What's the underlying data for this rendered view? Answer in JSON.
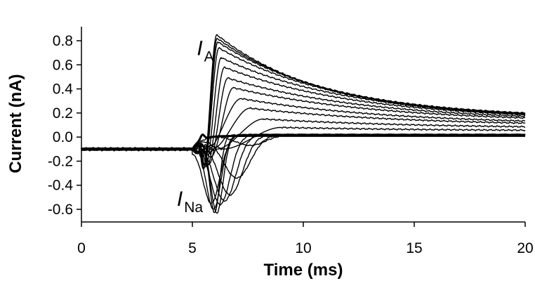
{
  "chart_data": {
    "type": "line",
    "title": "",
    "xlabel": "Time (ms)",
    "ylabel": "Current (nA)",
    "xlim": [
      0,
      20
    ],
    "ylim": [
      -0.7,
      0.9
    ],
    "xticks": [
      0,
      5,
      10,
      15,
      20
    ],
    "xtick_labels": [
      "0",
      "5",
      "10",
      "15",
      "20"
    ],
    "yticks": [
      0.8,
      0.6,
      0.4,
      0.2,
      0.0,
      -0.2,
      -0.4,
      -0.6
    ],
    "ytick_labels": [
      "0.8",
      "0.6",
      "0.4",
      "0.2",
      "0.0",
      "-0.2",
      "-0.4",
      "-0.6"
    ],
    "grid": false,
    "legend": "none",
    "annotations": [
      {
        "name": "annotation-ia",
        "text": "I",
        "subscript": "A",
        "x": 5.2,
        "y": 0.68
      },
      {
        "name": "annotation-ina",
        "text": "I",
        "subscript": "Na",
        "x": 4.3,
        "y": -0.57
      }
    ],
    "baseline": -0.1,
    "step_time_ms": 5.0,
    "series": [
      {
        "name": "trace-1",
        "peak_time": 6.1,
        "peak": 0.85,
        "tail": 0.15
      },
      {
        "name": "trace-2",
        "peak_time": 6.12,
        "peak": 0.82,
        "tail": 0.15
      },
      {
        "name": "trace-3",
        "peak_time": 6.15,
        "peak": 0.79,
        "tail": 0.15
      },
      {
        "name": "trace-4",
        "peak_time": 6.2,
        "peak": 0.74,
        "tail": 0.15
      },
      {
        "name": "trace-5",
        "peak_time": 6.3,
        "peak": 0.66,
        "tail": 0.15
      },
      {
        "name": "trace-6",
        "peak_time": 6.45,
        "peak": 0.58,
        "tail": 0.14
      },
      {
        "name": "trace-7",
        "peak_time": 6.6,
        "peak": 0.49,
        "tail": 0.13
      },
      {
        "name": "trace-8",
        "peak_time": 6.85,
        "peak": 0.41,
        "tail": 0.12
      },
      {
        "name": "trace-9",
        "peak_time": 7.2,
        "peak": 0.32,
        "tail": 0.1
      },
      {
        "name": "trace-10",
        "peak_time": 7.6,
        "peak": 0.24,
        "tail": 0.09
      },
      {
        "name": "trace-11",
        "peak_time": 8.2,
        "peak": 0.15,
        "tail": 0.07
      },
      {
        "name": "trace-12",
        "peak_time": 9.0,
        "peak": 0.08,
        "tail": 0.05
      }
    ],
    "inward_currents": [
      {
        "name": "na-trough-1",
        "trough_time": 6.0,
        "trough": -0.63
      },
      {
        "name": "na-trough-2",
        "trough_time": 6.1,
        "trough": -0.63
      },
      {
        "name": "na-trough-3",
        "trough_time": 5.95,
        "trough": -0.6
      },
      {
        "name": "na-trough-4",
        "trough_time": 5.85,
        "trough": -0.55
      },
      {
        "name": "na-trough-5",
        "trough_time": 6.25,
        "trough": -0.56
      },
      {
        "name": "na-trough-6",
        "trough_time": 6.45,
        "trough": -0.53
      },
      {
        "name": "na-trough-7",
        "trough_time": 6.7,
        "trough": -0.48
      },
      {
        "name": "na-trough-8",
        "trough_time": 7.0,
        "trough": -0.34
      },
      {
        "name": "na-trough-9",
        "trough_time": 7.6,
        "trough": -0.07
      }
    ],
    "background_traces": [
      {
        "name": "subthreshold-trace",
        "level": 0.01
      }
    ]
  }
}
